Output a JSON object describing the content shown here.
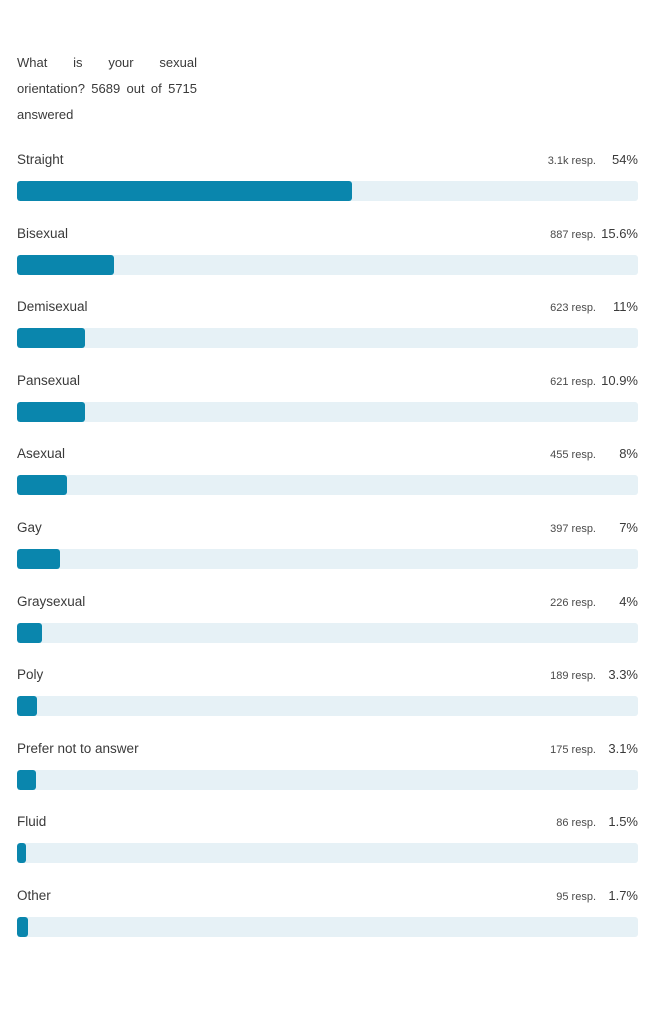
{
  "question": "What is your sexual orientation? 5689 out of 5715 answered",
  "colors": {
    "bar_fill": "#0a86ad",
    "bar_track": "#e6f1f6"
  },
  "chart_data": {
    "type": "bar",
    "orientation": "horizontal",
    "title": "What is your sexual orientation? 5689 out of 5715 answered",
    "categories": [
      "Straight",
      "Bisexual",
      "Demisexual",
      "Pansexual",
      "Asexual",
      "Gay",
      "Graysexual",
      "Poly",
      "Prefer not to answer",
      "Fluid",
      "Other"
    ],
    "responses": [
      "3.1k resp.",
      "887 resp.",
      "623 resp.",
      "621 resp.",
      "455 resp.",
      "397 resp.",
      "226 resp.",
      "189 resp.",
      "175 resp.",
      "86 resp.",
      "95 resp."
    ],
    "percent_labels": [
      "54%",
      "15.6%",
      "11%",
      "10.9%",
      "8%",
      "7%",
      "4%",
      "3.3%",
      "3.1%",
      "1.5%",
      "1.7%"
    ],
    "values": [
      54,
      15.6,
      11,
      10.9,
      8,
      7,
      4,
      3.3,
      3.1,
      1.5,
      1.7
    ],
    "xlim": [
      0,
      100
    ]
  }
}
